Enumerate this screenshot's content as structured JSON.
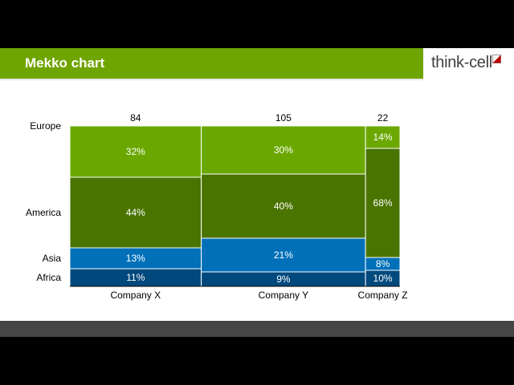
{
  "header": {
    "title": "Mekko chart",
    "logo_text": "think-cell"
  },
  "colors": {
    "title_bar": "#6fa500",
    "Europe": "#6aa800",
    "America": "#4a7400",
    "Asia": "#0070b8",
    "Africa": "#00497d",
    "footer": "#454545"
  },
  "chart_data": {
    "type": "mekko",
    "categories": [
      "Company X",
      "Company Y",
      "Company Z"
    ],
    "column_totals": [
      84,
      105,
      22
    ],
    "series": [
      {
        "name": "Europe",
        "values": [
          32,
          30,
          14
        ],
        "labels": [
          "32%",
          "30%",
          "14%"
        ]
      },
      {
        "name": "America",
        "values": [
          44,
          40,
          68
        ],
        "labels": [
          "44%",
          "40%",
          "68%"
        ]
      },
      {
        "name": "Asia",
        "values": [
          13,
          21,
          8
        ],
        "labels": [
          "13%",
          "21%",
          "8%"
        ]
      },
      {
        "name": "Africa",
        "values": [
          11,
          9,
          10
        ],
        "labels": [
          "11%",
          "9%",
          "10%"
        ]
      }
    ],
    "row_labels": [
      "Europe",
      "America",
      "Asia",
      "Africa"
    ],
    "stack_order": "top-to-bottom",
    "legend": "left-inline"
  }
}
